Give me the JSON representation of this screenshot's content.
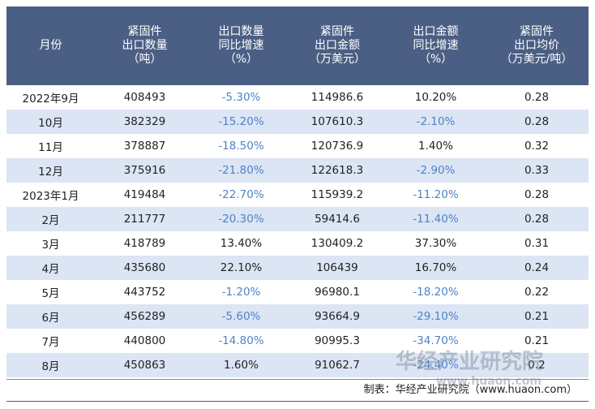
{
  "table": {
    "header": [
      [
        "月份"
      ],
      [
        "紧固件",
        "出口数量",
        "（吨）"
      ],
      [
        "出口数量",
        "同比增速",
        "（%）"
      ],
      [
        "紧固件",
        "出口金额",
        "（万美元）"
      ],
      [
        "出口金额",
        "同比增速",
        "（%）"
      ],
      [
        "紧固件",
        "出口均价",
        "（万美元/吨）"
      ]
    ],
    "rows": [
      [
        "2022年9月",
        "408493",
        "-5.30%",
        "114986.6",
        "10.20%",
        "0.28"
      ],
      [
        "10月",
        "382329",
        "-15.20%",
        "107610.3",
        "-2.10%",
        "0.28"
      ],
      [
        "11月",
        "378887",
        "-18.50%",
        "120736.9",
        "1.40%",
        "0.32"
      ],
      [
        "12月",
        "375916",
        "-21.80%",
        "122618.3",
        "-2.90%",
        "0.33"
      ],
      [
        "2023年1月",
        "419484",
        "-22.70%",
        "115939.2",
        "-11.20%",
        "0.28"
      ],
      [
        "2月",
        "211777",
        "-20.30%",
        "59414.6",
        "-11.40%",
        "0.28"
      ],
      [
        "3月",
        "418789",
        "13.40%",
        "130409.2",
        "37.30%",
        "0.31"
      ],
      [
        "4月",
        "435680",
        "22.10%",
        "106439",
        "16.70%",
        "0.24"
      ],
      [
        "5月",
        "443752",
        "-1.20%",
        "96980.1",
        "-18.20%",
        "0.22"
      ],
      [
        "6月",
        "456289",
        "-5.60%",
        "93664.9",
        "-29.10%",
        "0.21"
      ],
      [
        "7月",
        "440800",
        "-14.80%",
        "90995.3",
        "-34.70%",
        "0.21"
      ],
      [
        "8月",
        "450863",
        "1.60%",
        "91062.7",
        "-24.40%",
        "0.2"
      ]
    ]
  },
  "footer": "制表：华经产业研究院（www.huaon.com）",
  "watermark": {
    "title": "华经产业研究院",
    "url": "www.huaon.com"
  }
}
